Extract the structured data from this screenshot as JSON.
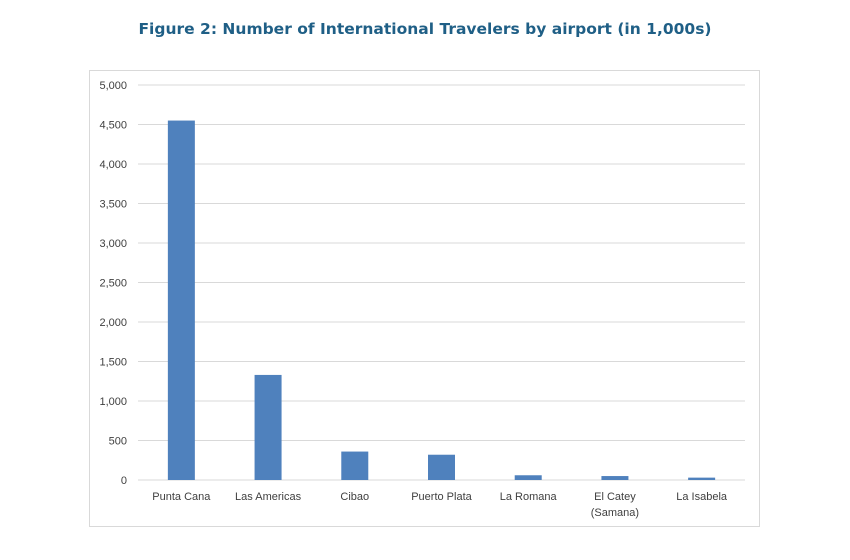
{
  "chart_data": {
    "type": "bar",
    "title": "Figure 2: Number of International Travelers by airport (in 1,000s)",
    "categories": [
      [
        "Punta Cana"
      ],
      [
        "Las Americas"
      ],
      [
        "Cibao"
      ],
      [
        "Puerto Plata"
      ],
      [
        "La Romana"
      ],
      [
        "El Catey",
        "(Samana)"
      ],
      [
        "La Isabela"
      ]
    ],
    "values": [
      4550,
      1330,
      360,
      320,
      60,
      50,
      30
    ],
    "ylim": [
      0,
      5000
    ],
    "yticks": [
      "0",
      "500",
      "1,000",
      "1,500",
      "2,000",
      "2,500",
      "3,000",
      "3,500",
      "4,000",
      "4,500",
      "5,000"
    ],
    "ytick_values": [
      0,
      500,
      1000,
      1500,
      2000,
      2500,
      3000,
      3500,
      4000,
      4500,
      5000
    ],
    "grid": true,
    "colors": {
      "bar": "#4f81bd",
      "grid": "#d9d9d9",
      "title": "#1f5f86"
    }
  }
}
